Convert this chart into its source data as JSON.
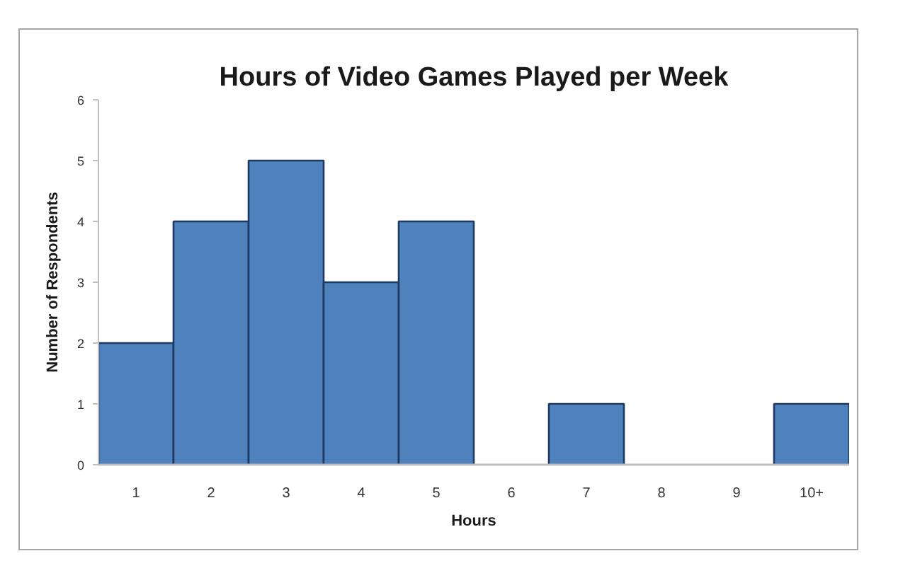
{
  "chart_data": {
    "type": "bar",
    "title": "Hours of Video Games Played per Week",
    "xlabel": "Hours",
    "ylabel": "Number of Respondents",
    "categories": [
      "1",
      "2",
      "3",
      "4",
      "5",
      "6",
      "7",
      "8",
      "9",
      "10+"
    ],
    "values": [
      2,
      4,
      5,
      3,
      4,
      0,
      1,
      0,
      0,
      1
    ],
    "color": "#4f81bd",
    "ylim": [
      0,
      6
    ],
    "yticks": [
      0,
      1,
      2,
      3,
      4,
      5,
      6
    ],
    "grid": false
  }
}
